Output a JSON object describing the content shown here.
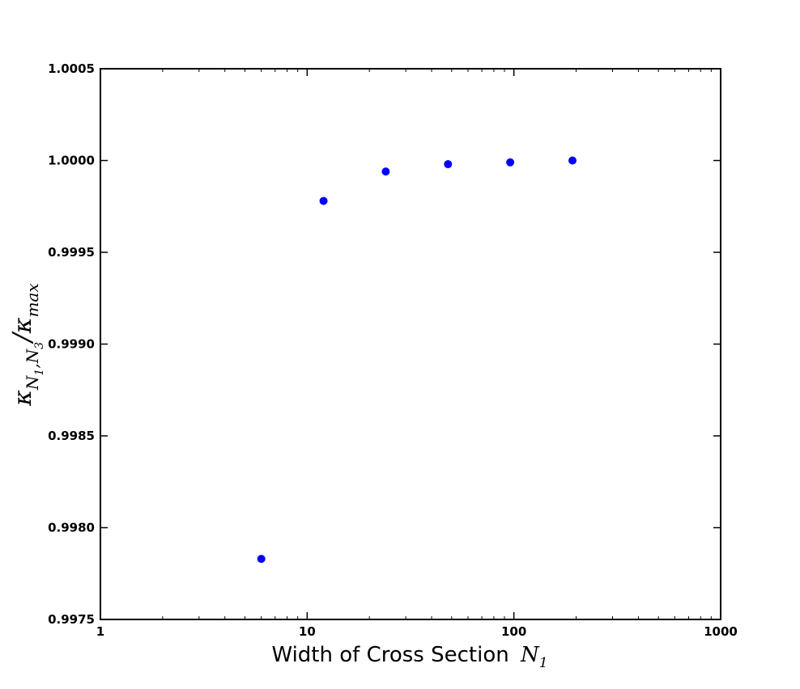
{
  "chart_data": {
    "type": "scatter",
    "x_scale": "log",
    "xlim": [
      1,
      1000
    ],
    "ylim": [
      0.9975,
      1.0005
    ],
    "grid": false,
    "marker_color": "#0000ff",
    "x": [
      6,
      12,
      24,
      48,
      96,
      192
    ],
    "y": [
      0.99783,
      0.99978,
      0.99994,
      0.99998,
      0.99999,
      1.0
    ],
    "x_ticks": [
      1,
      10,
      100,
      1000
    ],
    "x_tick_labels": [
      "1",
      "10",
      "100",
      "1000"
    ],
    "y_ticks": [
      0.9975,
      0.998,
      0.9985,
      0.999,
      0.9995,
      1.0,
      1.0005
    ],
    "y_tick_labels": [
      "0.9975",
      "0.9980",
      "0.9985",
      "0.9990",
      "0.9995",
      "1.0000",
      "1.0005"
    ],
    "xlabel_text": "Width of Cross Section",
    "xlabel_math": "N",
    "xlabel_sub": "1",
    "ylabel_kappa": "κ",
    "ylabel_sub": "N",
    "ylabel_sub1": "1",
    "ylabel_comma": ",",
    "ylabel_sub3": "3",
    "ylabel_slash": "/",
    "ylabel_sub_max": "max"
  }
}
